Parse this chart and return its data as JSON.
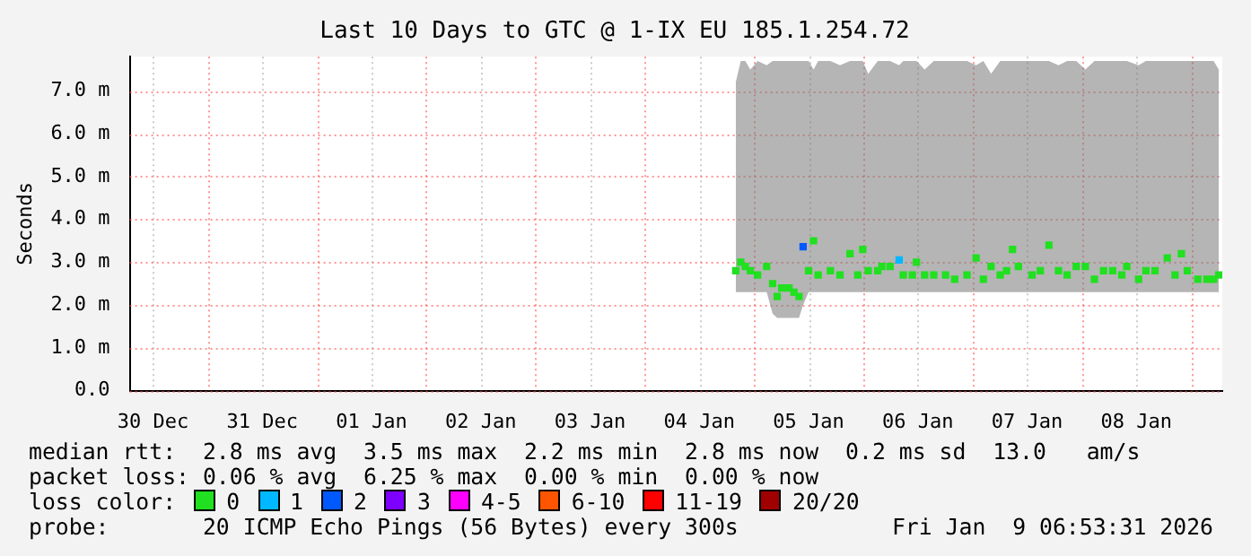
{
  "chart_data": {
    "type": "scatter",
    "title": "Last 10 Days to GTC @ 1-IX EU 185.1.254.72",
    "ylabel": "Seconds",
    "legend_title": "loss color:",
    "legend": "bottom",
    "marker": "square",
    "grid": true,
    "xlim": [
      "2025-12-30T06:53",
      "2026-01-09T06:53"
    ],
    "xticks": [
      {
        "value": "2025-12-30T12:00",
        "label": "30 Dec"
      },
      {
        "value": "2025-12-31T00:00",
        "label": null
      },
      {
        "value": "2025-12-31T12:00",
        "label": "31 Dec"
      },
      {
        "value": "2026-01-01T00:00",
        "label": null
      },
      {
        "value": "2026-01-01T12:00",
        "label": "01 Jan"
      },
      {
        "value": "2026-01-02T00:00",
        "label": null
      },
      {
        "value": "2026-01-02T12:00",
        "label": "02 Jan"
      },
      {
        "value": "2026-01-03T00:00",
        "label": null
      },
      {
        "value": "2026-01-03T12:00",
        "label": "03 Jan"
      },
      {
        "value": "2026-01-04T00:00",
        "label": null
      },
      {
        "value": "2026-01-04T12:00",
        "label": "04 Jan"
      },
      {
        "value": "2026-01-05T00:00",
        "label": null
      },
      {
        "value": "2026-01-05T12:00",
        "label": "05 Jan"
      },
      {
        "value": "2026-01-06T00:00",
        "label": null
      },
      {
        "value": "2026-01-06T12:00",
        "label": "06 Jan"
      },
      {
        "value": "2026-01-07T00:00",
        "label": null
      },
      {
        "value": "2026-01-07T12:00",
        "label": "07 Jan"
      },
      {
        "value": "2026-01-08T00:00",
        "label": null
      },
      {
        "value": "2026-01-08T12:00",
        "label": "08 Jan"
      },
      {
        "value": "2026-01-09T00:00",
        "label": null
      }
    ],
    "ylim": [
      0,
      7.8
    ],
    "yticks": [
      {
        "value": 0,
        "label": "0.0"
      },
      {
        "value": 1,
        "label": "1.0 m"
      },
      {
        "value": 2,
        "label": "2.0 m"
      },
      {
        "value": 3,
        "label": "3.0 m"
      },
      {
        "value": 4,
        "label": "4.0 m"
      },
      {
        "value": 5,
        "label": "5.0 m"
      },
      {
        "value": 6,
        "label": "6.0 m"
      },
      {
        "value": 7,
        "label": "7.0 m"
      }
    ],
    "series": [
      {
        "name": "0",
        "color": "#20e020",
        "x": [
          "2026-01-04T20:00",
          "2026-01-04T21:06",
          "2026-01-04T22:06",
          "2026-01-04T23:12",
          "2026-01-05T00:48",
          "2026-01-05T02:48",
          "2026-01-05T04:06",
          "2026-01-05T05:06",
          "2026-01-05T06:06",
          "2026-01-05T07:42",
          "2026-01-05T08:48",
          "2026-01-05T09:54",
          "2026-01-05T10:48",
          "2026-01-05T12:00",
          "2026-01-05T13:06",
          "2026-01-05T14:06",
          "2026-01-05T16:48",
          "2026-01-05T18:54",
          "2026-01-05T21:06",
          "2026-01-05T22:48",
          "2026-01-05T23:54",
          "2026-01-06T01:06",
          "2026-01-06T03:12",
          "2026-01-06T04:06",
          "2026-01-06T05:54",
          "2026-01-06T07:54",
          "2026-01-06T08:48",
          "2026-01-06T10:48",
          "2026-01-06T11:42",
          "2026-01-06T13:30",
          "2026-01-06T15:30",
          "2026-01-06T18:06",
          "2026-01-06T20:06",
          "2026-01-06T22:48",
          "2026-01-07T00:48",
          "2026-01-07T02:24",
          "2026-01-07T04:06",
          "2026-01-07T06:06",
          "2026-01-07T07:30",
          "2026-01-07T08:48",
          "2026-01-07T10:06",
          "2026-01-07T13:06",
          "2026-01-07T14:54",
          "2026-01-07T16:48",
          "2026-01-07T18:54",
          "2026-01-07T20:48",
          "2026-01-07T22:48",
          "2026-01-08T00:48",
          "2026-01-08T02:48",
          "2026-01-08T04:48",
          "2026-01-08T06:48",
          "2026-01-08T08:48",
          "2026-01-08T09:54",
          "2026-01-08T12:30",
          "2026-01-08T14:06",
          "2026-01-08T16:06",
          "2026-01-08T18:48",
          "2026-01-08T20:30",
          "2026-01-08T21:54",
          "2026-01-08T23:12",
          "2026-01-09T01:30",
          "2026-01-09T03:30",
          "2026-01-09T05:00",
          "2026-01-09T06:06"
        ],
        "values": [
          2.8,
          3.0,
          2.9,
          2.8,
          2.7,
          2.9,
          2.5,
          2.2,
          2.4,
          2.4,
          2.3,
          2.2,
          null,
          2.8,
          3.5,
          2.7,
          2.8,
          2.7,
          3.2,
          2.7,
          3.3,
          2.8,
          2.8,
          2.9,
          2.9,
          null,
          2.7,
          2.7,
          3.0,
          2.7,
          2.7,
          2.7,
          2.6,
          2.7,
          3.1,
          2.6,
          2.9,
          2.7,
          2.8,
          3.3,
          2.9,
          2.7,
          2.8,
          3.4,
          2.8,
          2.7,
          2.9,
          2.9,
          2.6,
          2.8,
          2.8,
          2.7,
          2.9,
          2.6,
          2.8,
          2.8,
          3.1,
          2.7,
          3.2,
          2.8,
          2.6,
          2.6,
          2.6,
          2.7
        ],
        "lower": [
          2.3,
          2.3,
          2.3,
          2.3,
          2.3,
          2.3,
          1.8,
          1.7,
          1.7,
          1.7,
          1.7,
          1.7,
          2.0,
          2.3,
          2.3,
          2.3,
          2.3,
          2.3,
          2.3,
          2.3,
          2.3,
          2.3,
          2.3,
          2.3,
          2.3,
          2.3,
          2.3,
          2.3,
          2.3,
          2.3,
          2.3,
          2.3,
          2.3,
          2.3,
          2.3,
          2.3,
          2.3,
          2.3,
          2.3,
          2.3,
          2.3,
          2.3,
          2.3,
          2.3,
          2.3,
          2.3,
          2.3,
          2.3,
          2.3,
          2.3,
          2.3,
          2.3,
          2.3,
          2.3,
          2.3,
          2.3,
          2.3,
          2.3,
          2.3,
          2.3,
          2.3,
          2.3,
          2.3,
          2.3
        ],
        "upper": [
          7.2,
          7.7,
          7.7,
          7.5,
          7.7,
          7.6,
          7.7,
          7.7,
          7.7,
          7.7,
          7.7,
          7.7,
          7.7,
          7.7,
          7.5,
          7.7,
          7.7,
          7.6,
          7.7,
          7.7,
          7.7,
          7.4,
          7.7,
          7.7,
          7.7,
          7.6,
          7.7,
          7.7,
          7.7,
          7.5,
          7.7,
          7.7,
          7.7,
          7.7,
          7.6,
          7.7,
          7.4,
          7.7,
          7.7,
          7.7,
          7.7,
          7.7,
          7.7,
          7.7,
          7.6,
          7.7,
          7.7,
          7.5,
          7.7,
          7.7,
          7.7,
          7.7,
          7.7,
          7.6,
          7.7,
          7.7,
          7.7,
          7.7,
          7.7,
          7.7,
          7.7,
          7.7,
          7.7,
          7.5
        ]
      },
      {
        "name": "1",
        "color": "#00b8ff",
        "x": [
          "2026-01-06T07:54"
        ],
        "values": [
          3.05
        ]
      },
      {
        "name": "2",
        "color": "#0059ff",
        "x": [
          "2026-01-05T10:48"
        ],
        "values": [
          3.36
        ]
      },
      {
        "name": "3",
        "color": "#7e00ff"
      },
      {
        "name": "4-5",
        "color": "#ff00ff"
      },
      {
        "name": "6-10",
        "color": "#ff5500"
      },
      {
        "name": "11-19",
        "color": "#ff0000"
      },
      {
        "name": "20/20",
        "color": "#a10000"
      }
    ],
    "annotations": [
      "median rtt:  2.8 ms avg  3.5 ms max  2.2 ms min  2.8 ms now  0.2 ms sd  13.0   am/s",
      "packet loss: 0.06 % avg  6.25 % max  0.00 % min  0.00 % now",
      "probe:       20 ICMP Echo Pings (56 Bytes) every 300s",
      "Fri Jan  9 06:53:31 2026"
    ]
  }
}
